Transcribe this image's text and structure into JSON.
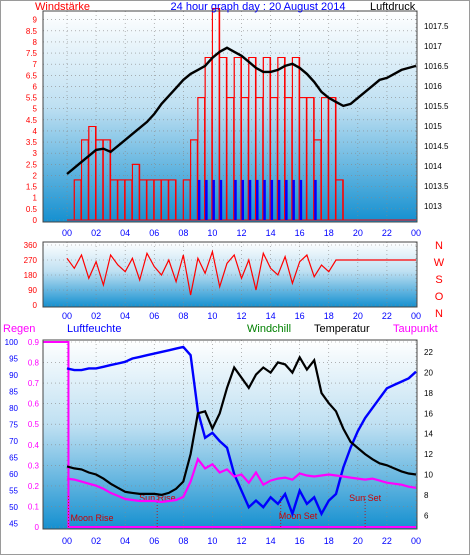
{
  "chart_data": [
    {
      "type": "line",
      "title": "24 hour graph day : 20 August 2014",
      "left_axis_label": "Windstärke",
      "right_axis_label": "Luftdruck",
      "x_ticks": [
        "00",
        "02",
        "04",
        "06",
        "08",
        "10",
        "12",
        "14",
        "16",
        "18",
        "20",
        "22",
        "00"
      ],
      "left_ticks": [
        "0",
        "0.5",
        "1",
        "1.5",
        "2",
        "2.5",
        "3",
        "3.5",
        "4",
        "4.5",
        "5",
        "5.5",
        "6",
        "6.5",
        "7",
        "7.5",
        "8",
        "8.5",
        "9"
      ],
      "right_ticks": [
        "1013",
        "1013.5",
        "1014",
        "1014.5",
        "1015",
        "1015.5",
        "1016",
        "1016.5",
        "1017",
        "1017.5"
      ],
      "ylim_left": [
        0,
        9.3
      ],
      "ylim_right": [
        1012.65,
        1017.82
      ],
      "pressure": {
        "x": [
          0,
          0.5,
          1,
          1.5,
          2,
          2.5,
          3,
          3.5,
          4,
          4.5,
          5,
          5.5,
          6,
          6.5,
          7,
          7.5,
          8,
          8.5,
          9,
          9.5,
          10,
          10.5,
          11,
          11.5,
          12,
          12.5,
          13,
          13.5,
          14,
          14.5,
          15,
          15.5,
          16,
          16.5,
          17,
          17.5,
          18,
          18.5,
          19,
          19.5,
          20,
          20.5,
          21,
          21.5,
          22,
          22.5,
          23,
          23.5,
          24
        ],
        "y": [
          1013.8,
          1013.95,
          1014.1,
          1014.25,
          1014.4,
          1014.43,
          1014.35,
          1014.5,
          1014.65,
          1014.8,
          1014.95,
          1015.1,
          1015.3,
          1015.55,
          1015.75,
          1015.95,
          1016.15,
          1016.3,
          1016.4,
          1016.5,
          1016.7,
          1016.85,
          1016.95,
          1016.85,
          1016.75,
          1016.6,
          1016.45,
          1016.35,
          1016.35,
          1016.4,
          1016.5,
          1016.55,
          1016.45,
          1016.3,
          1016.1,
          1015.85,
          1015.7,
          1015.6,
          1015.5,
          1015.55,
          1015.7,
          1015.85,
          1016.0,
          1016.15,
          1016.2,
          1016.3,
          1016.4,
          1016.45,
          1016.5
        ]
      },
      "wind_gust": {
        "x": [
          0,
          0.5,
          1,
          1.5,
          2,
          2.5,
          3,
          3.5,
          4,
          4.5,
          5,
          5.5,
          6,
          6.5,
          7,
          7.5,
          8,
          8.5,
          9,
          9.5,
          10,
          10.5,
          11,
          11.5,
          12,
          12.5,
          13,
          13.5,
          14,
          14.5,
          15,
          15.5,
          16,
          16.5,
          17,
          17.5,
          18,
          18.5,
          19,
          19.5,
          20,
          20.5,
          21,
          21.5,
          22,
          22.5,
          23,
          23.5,
          24
        ],
        "y": [
          0,
          1.8,
          3.6,
          4.2,
          3.6,
          3.6,
          1.8,
          1.8,
          1.8,
          2.5,
          1.8,
          1.8,
          1.8,
          1.8,
          1.8,
          0,
          1.8,
          3.6,
          5.5,
          7.3,
          9.5,
          7.3,
          5.5,
          7.3,
          5.5,
          7.3,
          5.5,
          7.3,
          5.5,
          7.3,
          5.5,
          7.3,
          5.5,
          5.5,
          3.6,
          5.5,
          5.5,
          1.8,
          0,
          0,
          0,
          0,
          0,
          0,
          0,
          0,
          0,
          0,
          0
        ]
      },
      "wind_speed": {
        "x": [
          8.5,
          9,
          9.5,
          10,
          10.5,
          11,
          11.5,
          12,
          12.5,
          13,
          13.5,
          14,
          14.5,
          15,
          15.5,
          16,
          16.5,
          17,
          17.5
        ],
        "y": [
          0,
          1.8,
          1.8,
          1.8,
          1.8,
          0,
          1.8,
          1.8,
          1.8,
          1.8,
          1.8,
          1.8,
          1.8,
          1.8,
          1.8,
          1.8,
          0,
          1.8,
          0
        ]
      }
    },
    {
      "type": "line",
      "right_labels": [
        "N",
        "W",
        "S",
        "O",
        "N"
      ],
      "left_ticks": [
        "0",
        "90",
        "180",
        "270",
        "360"
      ],
      "ylim": [
        0,
        360
      ],
      "direction": {
        "x": [
          0,
          0.5,
          1,
          1.5,
          2,
          2.5,
          3,
          3.5,
          4,
          4.5,
          5,
          5.5,
          6,
          6.5,
          7,
          7.5,
          8,
          8.5,
          9,
          9.5,
          10,
          10.5,
          11,
          11.5,
          12,
          12.5,
          13,
          13.5,
          14,
          14.5,
          15,
          15.5,
          16,
          16.5,
          17,
          17.5,
          18,
          18.5,
          19,
          19.5,
          20,
          20.5,
          21,
          21.5,
          22,
          22.5,
          23,
          23.5,
          24
        ],
        "y": [
          280,
          220,
          300,
          160,
          260,
          120,
          300,
          240,
          200,
          280,
          150,
          310,
          230,
          180,
          270,
          140,
          300,
          60,
          280,
          190,
          320,
          110,
          250,
          300,
          160,
          270,
          90,
          310,
          220,
          180,
          290,
          130,
          260,
          300,
          170,
          240,
          200,
          270,
          270,
          270,
          270,
          270,
          270,
          270,
          270,
          270,
          270,
          270,
          270
        ]
      }
    },
    {
      "type": "line",
      "legend": [
        "Regen",
        "Luftfeuchte",
        "Windchill",
        "Temperatur",
        "Taupunkt"
      ],
      "x_ticks": [
        "00",
        "02",
        "04",
        "06",
        "08",
        "10",
        "12",
        "14",
        "16",
        "18",
        "20",
        "22",
        "00"
      ],
      "rain_ticks": [
        "0",
        "0.1",
        "0.2",
        "0.3",
        "0.4",
        "0.5",
        "0.6",
        "0.7",
        "0.8",
        "0.9"
      ],
      "humidity_ticks": [
        "45",
        "50",
        "55",
        "60",
        "65",
        "70",
        "75",
        "80",
        "85",
        "90",
        "95",
        "100"
      ],
      "temp_ticks": [
        "6",
        "8",
        "10",
        "12",
        "14",
        "16",
        "18",
        "20",
        "22"
      ],
      "ylim_rain": [
        0,
        0.9
      ],
      "ylim_humidity": [
        44,
        100
      ],
      "ylim_temp": [
        4.85,
        23.0
      ],
      "annotations": [
        "Moon Rise",
        "Sun Rise",
        "Moon Set",
        "Sun Set"
      ],
      "annotation_times": [
        0.1,
        6.2,
        14.7,
        20.5
      ],
      "rain": {
        "x": [
          0,
          0.1,
          0.1,
          24
        ],
        "y": [
          0.9,
          0.9,
          0,
          0
        ]
      },
      "humidity": {
        "x": [
          0,
          0.5,
          1,
          1.5,
          2,
          2.5,
          3,
          3.5,
          4,
          4.5,
          5,
          5.5,
          6,
          6.5,
          7,
          7.5,
          8,
          8.5,
          9,
          9.5,
          10,
          10.5,
          11,
          11.5,
          12,
          12.5,
          13,
          13.5,
          14,
          14.5,
          15,
          15.5,
          16,
          16.5,
          17,
          17.5,
          18,
          18.5,
          19,
          19.5,
          20,
          20.5,
          21,
          21.5,
          22,
          22.5,
          23,
          23.5,
          24
        ],
        "y": [
          92,
          91.5,
          91.5,
          92,
          92,
          92.5,
          93,
          93.5,
          94,
          95,
          95.5,
          96,
          96.5,
          97,
          97.5,
          98,
          98.5,
          96,
          79,
          71,
          72.5,
          70,
          68,
          60,
          55,
          50,
          52,
          50,
          53,
          51,
          54,
          48,
          55,
          51,
          53,
          48,
          52,
          54,
          62,
          68,
          73,
          77,
          80,
          83,
          86,
          87,
          88,
          89,
          91
        ]
      },
      "temperature": {
        "x": [
          0,
          0.5,
          1,
          1.5,
          2,
          2.5,
          3,
          3.5,
          4,
          4.5,
          5,
          5.5,
          6,
          6.5,
          7,
          7.5,
          8,
          8.5,
          9,
          9.5,
          10,
          10.5,
          11,
          11.5,
          12,
          12.5,
          13,
          13.5,
          14,
          14.5,
          15,
          15.5,
          16,
          16.5,
          17,
          17.5,
          18,
          18.5,
          19,
          19.5,
          20,
          20.5,
          21,
          21.5,
          22,
          22.5,
          23,
          23.5,
          24
        ],
        "y": [
          10.8,
          10.6,
          10.5,
          10.2,
          10,
          9.6,
          9.1,
          8.7,
          8.3,
          8.2,
          8.1,
          8.1,
          8.1,
          8.0,
          8.2,
          8.6,
          9.3,
          12,
          16,
          16.2,
          14.5,
          16,
          18.5,
          20.5,
          19.5,
          18.5,
          19.8,
          20.5,
          20,
          21,
          20.8,
          20,
          21.5,
          20.3,
          21.2,
          18,
          17,
          16.2,
          14.5,
          13.2,
          12.6,
          12,
          11.5,
          11.1,
          10.9,
          10.6,
          10.3,
          10.1,
          10.0
        ]
      },
      "dewpoint": {
        "x": [
          0,
          0.5,
          1,
          1.5,
          2,
          2.5,
          3,
          3.5,
          4,
          4.5,
          5,
          5.5,
          6,
          6.5,
          7,
          7.5,
          8,
          8.5,
          9,
          9.5,
          10,
          10.5,
          11,
          11.5,
          12,
          12.5,
          13,
          13.5,
          14,
          14.5,
          15,
          15.5,
          16,
          16.5,
          17,
          17.5,
          18,
          18.5,
          19,
          19.5,
          20,
          20.5,
          21,
          21.5,
          22,
          22.5,
          23,
          23.5,
          24
        ],
        "y": [
          9.6,
          9.5,
          9.3,
          9.1,
          8.9,
          8.6,
          8.2,
          7.9,
          7.6,
          7.5,
          7.4,
          7.4,
          7.4,
          7.3,
          7.4,
          7.5,
          7.8,
          9.3,
          11.5,
          10.6,
          11,
          10.2,
          10.5,
          9.8,
          10,
          9.2,
          10.2,
          9.0,
          9.4,
          9.6,
          9.7,
          9.5,
          10.1,
          9.9,
          9.8,
          9.9,
          10.0,
          9.9,
          9.8,
          9.7,
          9.6,
          9.5,
          9.6,
          9.4,
          9.2,
          9.1,
          9.0,
          8.8,
          8.7
        ]
      }
    }
  ],
  "colors": {
    "wind": "#ff0000",
    "wind_speed": "#0000ff",
    "pressure": "#000000",
    "rain": "#ff00ff",
    "humidity": "#0000ff",
    "windchill": "#008000",
    "temperature": "#000000",
    "dewpoint": "#ff00ff",
    "title": "#0000ff",
    "moon_sun_text": "#cc0000"
  }
}
